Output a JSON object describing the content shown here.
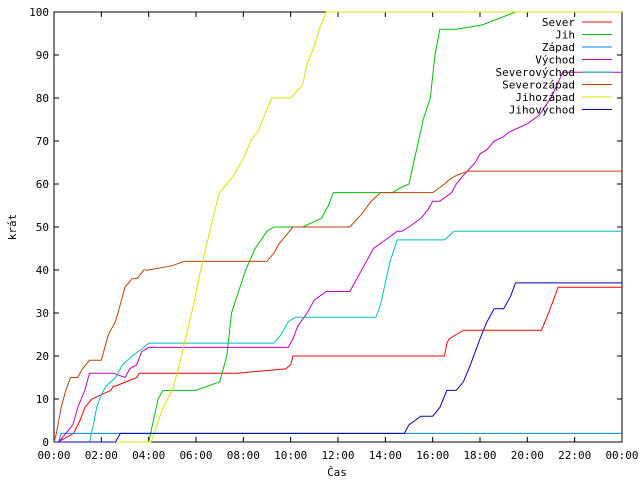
{
  "chart_data": {
    "type": "line",
    "title": "",
    "xlabel": "Čas",
    "ylabel": "krát",
    "xlim": [
      0,
      24
    ],
    "ylim": [
      0,
      100
    ],
    "x_ticks": [
      0,
      2,
      4,
      6,
      8,
      10,
      12,
      14,
      16,
      18,
      20,
      22,
      24
    ],
    "x_tick_labels": [
      "00:00",
      "02:00",
      "04:00",
      "06:00",
      "08:00",
      "10:00",
      "12:00",
      "14:00",
      "16:00",
      "18:00",
      "20:00",
      "22:00",
      "00:00"
    ],
    "y_ticks": [
      0,
      10,
      20,
      30,
      40,
      50,
      60,
      70,
      80,
      90,
      100
    ],
    "y_tick_labels": [
      "0",
      "10",
      "20",
      "30",
      "40",
      "50",
      "60",
      "70",
      "80",
      "90",
      "100"
    ],
    "grid": false,
    "legend_position": "top-right",
    "series": [
      {
        "name": "Sever",
        "color": "#ff0000",
        "x": [
          0,
          0.17,
          0.83,
          1.1,
          1.3,
          1.6,
          2.4,
          2.5,
          2.6,
          3.5,
          3.6,
          7.7,
          9.8,
          10.0,
          10.1,
          10.5,
          16.5,
          16.6,
          16.7,
          17.0,
          17.3,
          20.6,
          20.9,
          21.1,
          21.3,
          21.6,
          24
        ],
        "y": [
          0,
          0,
          2,
          5,
          8,
          10,
          12,
          13,
          13,
          15,
          16,
          16,
          17,
          18,
          20,
          20,
          20,
          23,
          24,
          25,
          26,
          26,
          30,
          33,
          36,
          36,
          36
        ]
      },
      {
        "name": "Jih",
        "color": "#00c000",
        "x": [
          0,
          4.0,
          4.2,
          4.4,
          4.6,
          5.0,
          6.0,
          7.0,
          7.3,
          7.5,
          7.8,
          8.1,
          8.5,
          9.0,
          9.3,
          9.5,
          10.5,
          11.3,
          11.6,
          11.8,
          12.0,
          13.0,
          13.9,
          14.3,
          14.6,
          15.0,
          15.2,
          15.4,
          15.6,
          15.9,
          16.1,
          16.3,
          17.0,
          18.1,
          19.5,
          24
        ],
        "y": [
          0,
          0,
          5,
          10,
          12,
          12,
          12,
          14,
          20,
          30,
          35,
          40,
          45,
          49,
          50,
          50,
          50,
          52,
          55,
          58,
          58,
          58,
          58,
          58,
          59,
          60,
          65,
          70,
          75,
          80,
          90,
          96,
          96,
          97,
          100,
          100
        ]
      },
      {
        "name": "Západ",
        "color": "#0080ff",
        "x": [
          0,
          0.2,
          0.3,
          24
        ],
        "y": [
          0,
          0,
          2,
          2
        ]
      },
      {
        "name": "Východ",
        "color": "#c000c0",
        "x": [
          0,
          0.2,
          0.5,
          0.8,
          1.0,
          1.3,
          1.5,
          2.5,
          3.0,
          3.2,
          3.5,
          3.7,
          4.0,
          5.0,
          7.0,
          9.9,
          10.1,
          10.3,
          10.7,
          11.0,
          11.5,
          12.5,
          13.0,
          13.2,
          13.5,
          14.5,
          14.7,
          15.0,
          15.5,
          15.8,
          16.0,
          16.3,
          16.8,
          17.0,
          17.3,
          17.8,
          18.0,
          18.3,
          18.6,
          19.0,
          19.2,
          20.0,
          20.5,
          21.0,
          21.5,
          24
        ],
        "y": [
          0,
          0,
          2,
          4,
          8,
          12,
          16,
          16,
          15,
          17,
          18,
          21,
          22,
          22,
          22,
          22,
          24,
          27,
          30,
          33,
          35,
          35,
          40,
          42,
          45,
          49,
          49,
          50,
          52,
          54,
          56,
          56,
          58,
          60,
          62,
          65,
          67,
          68,
          70,
          71,
          72,
          74,
          76,
          80,
          86,
          86
        ]
      },
      {
        "name": "Severovýchod",
        "color": "#00c0c0",
        "x": [
          0,
          1.5,
          1.7,
          1.8,
          2.0,
          2.2,
          2.6,
          2.9,
          3.3,
          3.8,
          4.0,
          7.5,
          9.3,
          9.6,
          9.9,
          10.2,
          10.5,
          11.0,
          11.5,
          13.6,
          13.8,
          14.0,
          14.2,
          14.5,
          16.5,
          16.9,
          24
        ],
        "y": [
          0,
          0,
          5,
          8,
          11,
          13,
          15,
          18,
          20,
          22,
          23,
          23,
          23,
          25,
          28,
          29,
          29,
          29,
          29,
          29,
          32,
          37,
          42,
          47,
          47,
          49,
          49
        ]
      },
      {
        "name": "Severozápad",
        "color": "#c04000",
        "x": [
          0,
          0.1,
          0.3,
          0.5,
          0.7,
          1.0,
          1.2,
          1.5,
          2.0,
          2.3,
          2.6,
          2.8,
          3.0,
          3.3,
          3.5,
          3.8,
          4.0,
          5.0,
          5.5,
          7.0,
          7.3,
          8.0,
          9.0,
          9.3,
          9.5,
          9.8,
          10.1,
          10.5,
          11.0,
          12.5,
          13.0,
          13.4,
          13.8,
          14.2,
          15.0,
          16.0,
          16.5,
          16.7,
          17.0,
          17.5,
          18.0,
          20.0,
          24
        ],
        "y": [
          0,
          2,
          8,
          12,
          15,
          15,
          17,
          19,
          19,
          25,
          28,
          32,
          36,
          38,
          38,
          40,
          40,
          41,
          42,
          42,
          42,
          42,
          42,
          44,
          46,
          48,
          50,
          50,
          50,
          50,
          53,
          56,
          58,
          58,
          58,
          58,
          60,
          61,
          62,
          63,
          63,
          63,
          63
        ]
      },
      {
        "name": "Jihozápad",
        "color": "#e0e000",
        "x": [
          0,
          4.1,
          4.3,
          4.6,
          4.8,
          5.0,
          5.3,
          5.6,
          5.9,
          6.2,
          6.5,
          6.8,
          7.0,
          7.3,
          7.6,
          7.8,
          8.1,
          8.3,
          8.6,
          8.9,
          9.2,
          9.5,
          10.0,
          10.5,
          10.7,
          11.0,
          11.2,
          11.5,
          11.7,
          12.0,
          24
        ],
        "y": [
          0,
          0,
          3,
          8,
          10,
          12,
          18,
          25,
          32,
          40,
          47,
          54,
          58,
          60,
          62,
          64,
          67,
          70,
          72,
          76,
          80,
          80,
          80,
          83,
          88,
          92,
          96,
          100,
          100,
          100,
          100
        ]
      },
      {
        "name": "Jihovýchod",
        "color": "#0000c0",
        "x": [
          0,
          2.6,
          2.8,
          14.8,
          15.0,
          15.5,
          16.0,
          16.3,
          16.6,
          17.0,
          17.3,
          17.6,
          18.0,
          18.3,
          18.6,
          19.0,
          19.3,
          19.5,
          21.0,
          22.0,
          24
        ],
        "y": [
          0,
          0,
          2,
          2,
          4,
          6,
          6,
          8,
          12,
          12,
          14,
          18,
          24,
          28,
          31,
          31,
          34,
          37,
          37,
          37,
          37
        ]
      }
    ]
  }
}
